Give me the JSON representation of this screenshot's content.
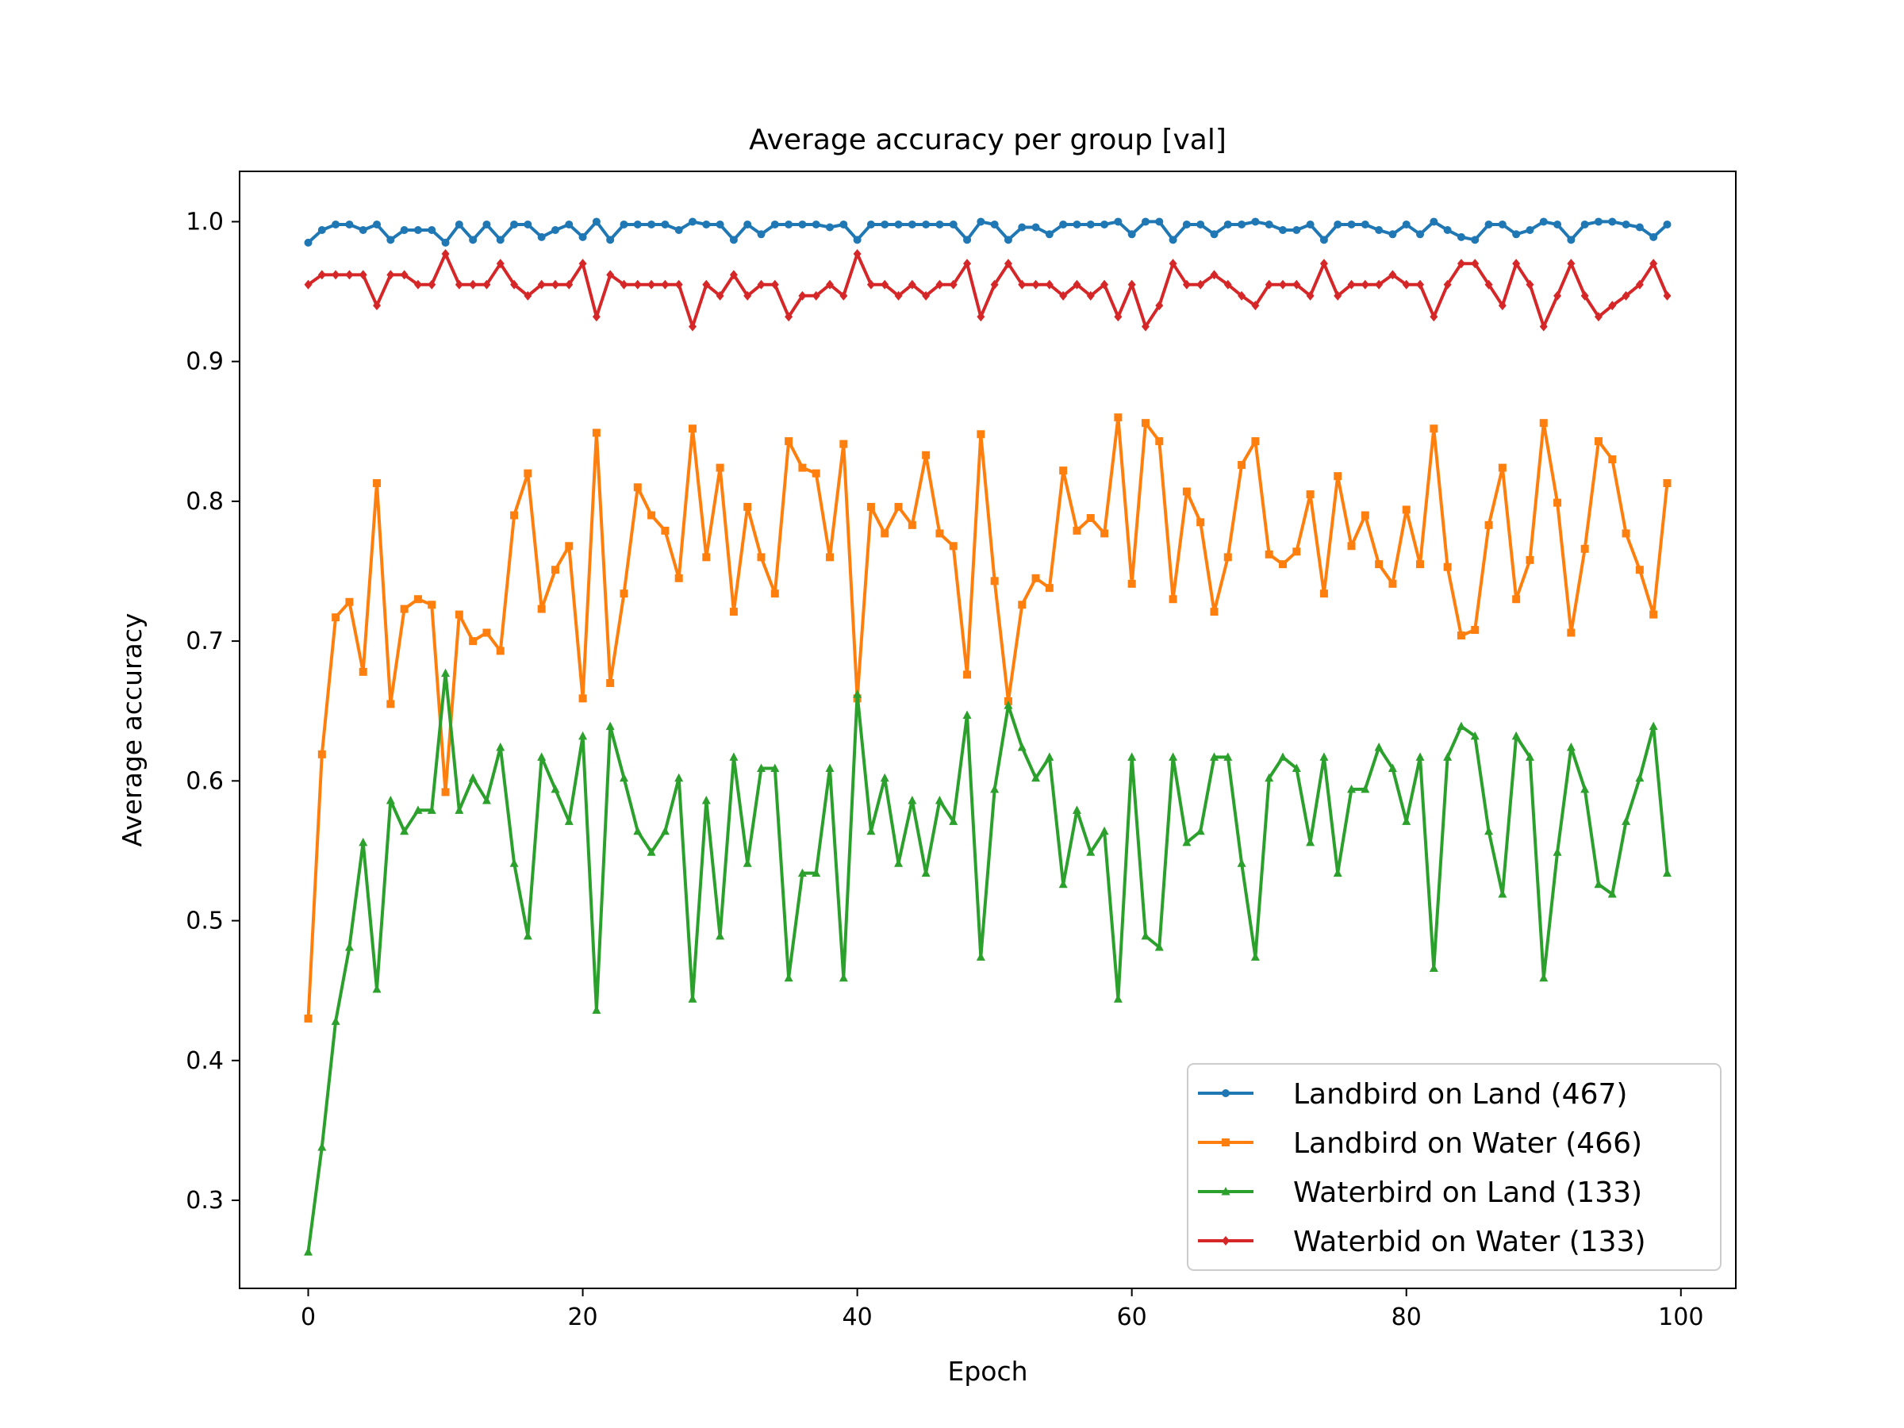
{
  "chart_data": {
    "type": "line",
    "title": "Average accuracy per group [val]",
    "xlabel": "Epoch",
    "ylabel": "Average accuracy",
    "xlim": [
      -5,
      104
    ],
    "ylim": [
      0.237,
      1.036
    ],
    "xticks": [
      0,
      20,
      40,
      60,
      80,
      100
    ],
    "xtick_labels": [
      "0",
      "20",
      "40",
      "60",
      "80",
      "100"
    ],
    "yticks": [
      0.3,
      0.4,
      0.5,
      0.6,
      0.7,
      0.8,
      0.9,
      1.0
    ],
    "ytick_labels": [
      "0.3",
      "0.4",
      "0.5",
      "0.6",
      "0.7",
      "0.8",
      "0.9",
      "1.0"
    ],
    "grid": false,
    "legend_position": "lower-right",
    "x": [
      0,
      1,
      2,
      3,
      4,
      5,
      6,
      7,
      8,
      9,
      10,
      11,
      12,
      13,
      14,
      15,
      16,
      17,
      18,
      19,
      20,
      21,
      22,
      23,
      24,
      25,
      26,
      27,
      28,
      29,
      30,
      31,
      32,
      33,
      34,
      35,
      36,
      37,
      38,
      39,
      40,
      41,
      42,
      43,
      44,
      45,
      46,
      47,
      48,
      49,
      50,
      51,
      52,
      53,
      54,
      55,
      56,
      57,
      58,
      59,
      60,
      61,
      62,
      63,
      64,
      65,
      66,
      67,
      68,
      69,
      70,
      71,
      72,
      73,
      74,
      75,
      76,
      77,
      78,
      79,
      80,
      81,
      82,
      83,
      84,
      85,
      86,
      87,
      88,
      89,
      90,
      91,
      92,
      93,
      94,
      95,
      96,
      97,
      98,
      99
    ],
    "series": [
      {
        "name": "Landbird on Land (467)",
        "color": "#1f77b4",
        "marker": "circle",
        "values": [
          0.985,
          0.994,
          0.998,
          0.998,
          0.994,
          0.998,
          0.987,
          0.994,
          0.994,
          0.994,
          0.985,
          0.998,
          0.987,
          0.998,
          0.987,
          0.998,
          0.998,
          0.989,
          0.994,
          0.998,
          0.989,
          1.0,
          0.987,
          0.998,
          0.998,
          0.998,
          0.998,
          0.994,
          1.0,
          0.998,
          0.998,
          0.987,
          0.998,
          0.991,
          0.998,
          0.998,
          0.998,
          0.998,
          0.996,
          0.998,
          0.987,
          0.998,
          0.998,
          0.998,
          0.998,
          0.998,
          0.998,
          0.998,
          0.987,
          1.0,
          0.998,
          0.987,
          0.996,
          0.996,
          0.991,
          0.998,
          0.998,
          0.998,
          0.998,
          1.0,
          0.991,
          1.0,
          1.0,
          0.987,
          0.998,
          0.998,
          0.991,
          0.998,
          0.998,
          1.0,
          0.998,
          0.994,
          0.994,
          0.998,
          0.987,
          0.998,
          0.998,
          0.998,
          0.994,
          0.991,
          0.998,
          0.991,
          1.0,
          0.994,
          0.989,
          0.987,
          0.998,
          0.998,
          0.991,
          0.994,
          1.0,
          0.998,
          0.987,
          0.998,
          1.0,
          1.0,
          0.998,
          0.996,
          0.989,
          0.998
        ]
      },
      {
        "name": "Landbird on Water (466)",
        "color": "#ff7f0e",
        "marker": "square",
        "values": [
          0.43,
          0.619,
          0.717,
          0.728,
          0.678,
          0.813,
          0.655,
          0.723,
          0.73,
          0.726,
          0.592,
          0.719,
          0.7,
          0.706,
          0.693,
          0.79,
          0.82,
          0.723,
          0.751,
          0.768,
          0.659,
          0.849,
          0.67,
          0.734,
          0.81,
          0.79,
          0.779,
          0.745,
          0.852,
          0.76,
          0.824,
          0.721,
          0.796,
          0.76,
          0.734,
          0.843,
          0.824,
          0.82,
          0.76,
          0.841,
          0.659,
          0.796,
          0.777,
          0.796,
          0.783,
          0.833,
          0.777,
          0.768,
          0.676,
          0.848,
          0.743,
          0.657,
          0.726,
          0.745,
          0.738,
          0.822,
          0.779,
          0.788,
          0.777,
          0.86,
          0.741,
          0.856,
          0.843,
          0.73,
          0.807,
          0.785,
          0.721,
          0.76,
          0.826,
          0.843,
          0.762,
          0.755,
          0.764,
          0.805,
          0.734,
          0.818,
          0.768,
          0.79,
          0.755,
          0.741,
          0.794,
          0.755,
          0.852,
          0.753,
          0.704,
          0.708,
          0.783,
          0.824,
          0.73,
          0.758,
          0.856,
          0.799,
          0.706,
          0.766,
          0.843,
          0.83,
          0.777,
          0.751,
          0.719,
          0.813
        ]
      },
      {
        "name": "Waterbird on Land (133)",
        "color": "#2ca02c",
        "marker": "triangle",
        "values": [
          0.263,
          0.338,
          0.428,
          0.481,
          0.556,
          0.451,
          0.586,
          0.564,
          0.579,
          0.579,
          0.677,
          0.579,
          0.602,
          0.586,
          0.624,
          0.541,
          0.489,
          0.617,
          0.594,
          0.571,
          0.632,
          0.436,
          0.639,
          0.602,
          0.564,
          0.549,
          0.564,
          0.602,
          0.444,
          0.586,
          0.489,
          0.617,
          0.541,
          0.609,
          0.609,
          0.459,
          0.534,
          0.534,
          0.609,
          0.459,
          0.662,
          0.564,
          0.602,
          0.541,
          0.586,
          0.534,
          0.586,
          0.571,
          0.647,
          0.474,
          0.594,
          0.654,
          0.624,
          0.602,
          0.617,
          0.526,
          0.579,
          0.549,
          0.564,
          0.444,
          0.617,
          0.489,
          0.481,
          0.617,
          0.556,
          0.564,
          0.617,
          0.617,
          0.541,
          0.474,
          0.602,
          0.617,
          0.609,
          0.556,
          0.617,
          0.534,
          0.594,
          0.594,
          0.624,
          0.609,
          0.571,
          0.617,
          0.466,
          0.617,
          0.639,
          0.632,
          0.564,
          0.519,
          0.632,
          0.617,
          0.459,
          0.549,
          0.624,
          0.594,
          0.526,
          0.519,
          0.571,
          0.602,
          0.639,
          0.534
        ]
      },
      {
        "name": "Waterbid on Water (133)",
        "color": "#d62728",
        "marker": "diamond",
        "values": [
          0.955,
          0.962,
          0.962,
          0.962,
          0.962,
          0.94,
          0.962,
          0.962,
          0.955,
          0.955,
          0.977,
          0.955,
          0.955,
          0.955,
          0.97,
          0.955,
          0.947,
          0.955,
          0.955,
          0.955,
          0.97,
          0.932,
          0.962,
          0.955,
          0.955,
          0.955,
          0.955,
          0.955,
          0.925,
          0.955,
          0.947,
          0.962,
          0.947,
          0.955,
          0.955,
          0.932,
          0.947,
          0.947,
          0.955,
          0.947,
          0.977,
          0.955,
          0.955,
          0.947,
          0.955,
          0.947,
          0.955,
          0.955,
          0.97,
          0.932,
          0.955,
          0.97,
          0.955,
          0.955,
          0.955,
          0.947,
          0.955,
          0.947,
          0.955,
          0.932,
          0.955,
          0.925,
          0.94,
          0.97,
          0.955,
          0.955,
          0.962,
          0.955,
          0.947,
          0.94,
          0.955,
          0.955,
          0.955,
          0.947,
          0.97,
          0.947,
          0.955,
          0.955,
          0.955,
          0.962,
          0.955,
          0.955,
          0.932,
          0.955,
          0.97,
          0.97,
          0.955,
          0.94,
          0.97,
          0.955,
          0.925,
          0.947,
          0.97,
          0.947,
          0.932,
          0.94,
          0.947,
          0.955,
          0.97,
          0.947
        ]
      }
    ]
  }
}
